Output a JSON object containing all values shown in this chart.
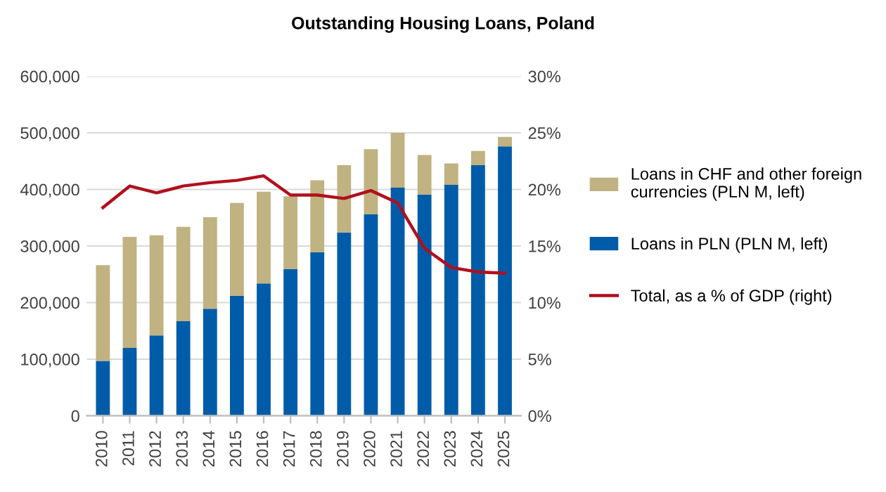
{
  "chart_data": {
    "type": "bar",
    "title": "Outstanding Housing Loans, Poland",
    "stacked": true,
    "categories": [
      "2010",
      "2011",
      "2012",
      "2013",
      "2014",
      "2015",
      "2016",
      "2017",
      "2018",
      "2019",
      "2020",
      "2021",
      "2022",
      "2023",
      "2024",
      "2025"
    ],
    "series": [
      {
        "name": "Loans in PLN (PLN M, left)",
        "color": "#005ca9",
        "values": [
          97000,
          120000,
          142000,
          167000,
          189000,
          212000,
          234000,
          259000,
          289000,
          324000,
          356000,
          403000,
          391000,
          408000,
          443000,
          476000
        ]
      },
      {
        "name": "Loans in CHF and other foreign currencies (PLN M, left)",
        "color": "#c0b281",
        "values": [
          169000,
          196000,
          177000,
          167000,
          162000,
          164000,
          162000,
          129000,
          127000,
          119000,
          115000,
          97000,
          70000,
          38000,
          25000,
          17000
        ]
      },
      {
        "name": "Total, as a % of GDP (right)",
        "type": "line",
        "axis": "y2",
        "color": "#b0101e",
        "values": [
          18.4,
          20.3,
          19.7,
          20.3,
          20.6,
          20.8,
          21.2,
          19.5,
          19.5,
          19.2,
          19.9,
          18.8,
          14.8,
          13.1,
          12.7,
          12.6
        ]
      }
    ],
    "ylim": [
      0,
      600000
    ],
    "yticks": [
      0,
      {
        "value": 100000,
        "label": "100,000"
      },
      {
        "value": 200000,
        "label": "200,000"
      },
      {
        "value": 300000,
        "label": "300,000"
      },
      {
        "value": 400000,
        "label": "400,000"
      },
      {
        "value": 500000,
        "label": "500,000"
      },
      {
        "value": 600000,
        "label": "600,000"
      }
    ],
    "y2lim": [
      0,
      30
    ],
    "y2ticks": [
      {
        "value": 0,
        "label": "0%"
      },
      {
        "value": 5,
        "label": "5%"
      },
      {
        "value": 10,
        "label": "10%"
      },
      {
        "value": 15,
        "label": "15%"
      },
      {
        "value": 20,
        "label": "20%"
      },
      {
        "value": 25,
        "label": "25%"
      },
      {
        "value": 30,
        "label": "30%"
      }
    ],
    "grid": "y",
    "legend": "right"
  }
}
